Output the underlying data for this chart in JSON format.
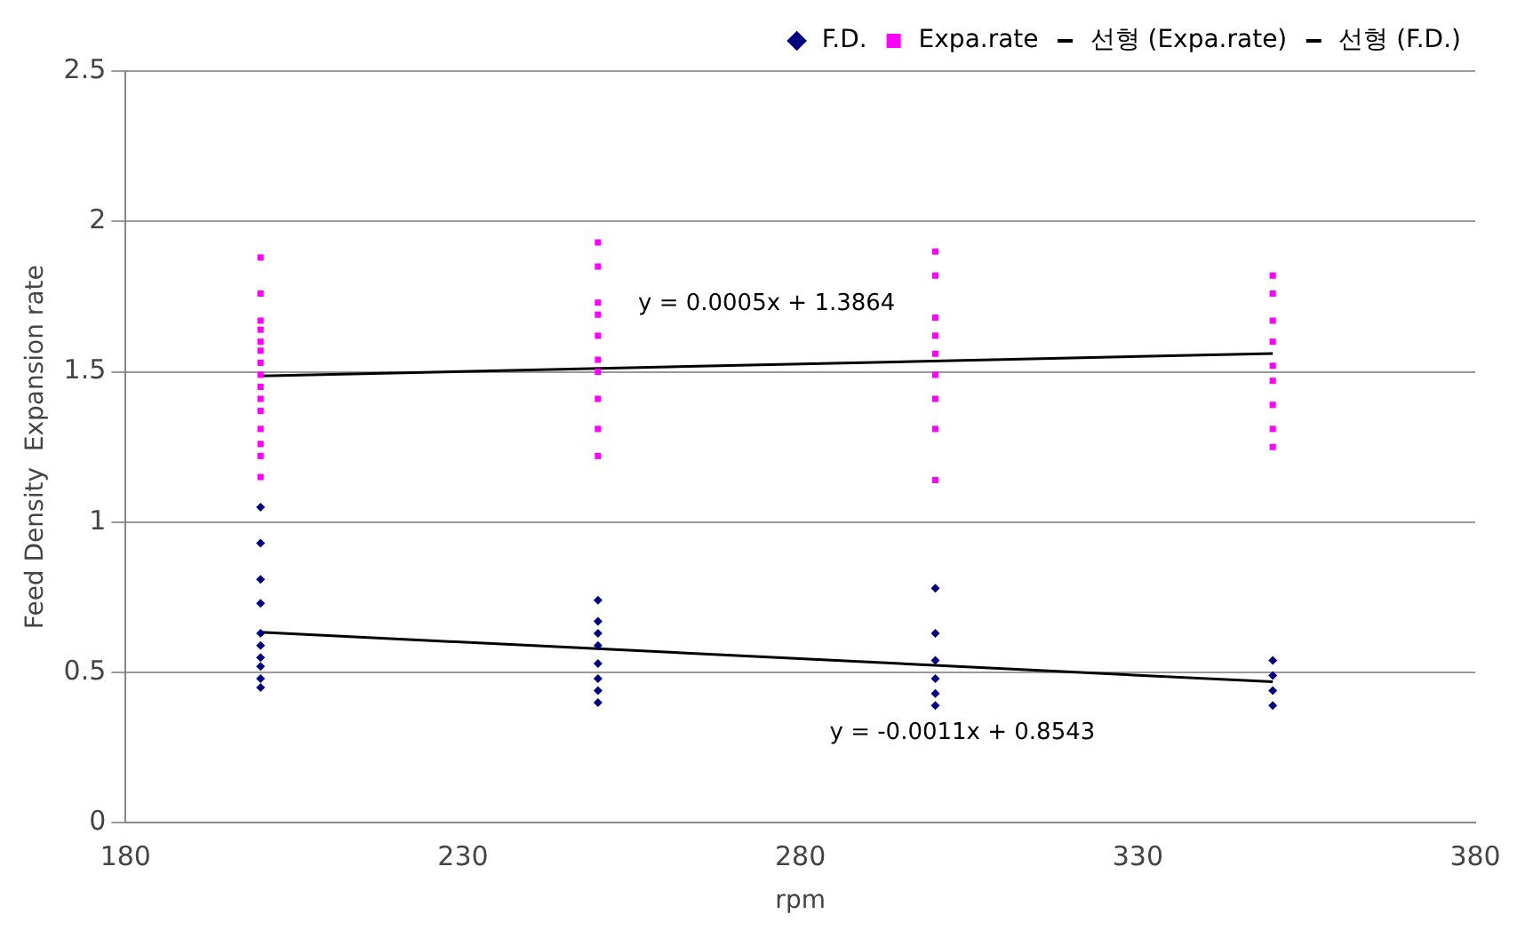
{
  "chart_data": {
    "type": "scatter",
    "xlabel": "rpm",
    "ylabel": "Feed Density  Expansion rate",
    "xlim": [
      180,
      380
    ],
    "xticks": [
      180,
      230,
      280,
      330,
      380
    ],
    "ylim": [
      0,
      2.5
    ],
    "yticks": [
      0,
      0.5,
      1,
      1.5,
      2,
      2.5
    ],
    "grid": "y",
    "legend": "top",
    "series": [
      {
        "name": "F.D.",
        "type": "scatter",
        "marker": "diamond",
        "color": "#000080",
        "x": [
          200,
          200,
          200,
          200,
          200,
          200,
          200,
          200,
          200,
          200,
          250,
          250,
          250,
          250,
          250,
          250,
          250,
          250,
          300,
          300,
          300,
          300,
          300,
          300,
          350,
          350,
          350,
          350
        ],
        "values": [
          1.05,
          0.93,
          0.81,
          0.73,
          0.63,
          0.59,
          0.55,
          0.52,
          0.48,
          0.45,
          0.74,
          0.67,
          0.63,
          0.59,
          0.53,
          0.48,
          0.44,
          0.4,
          0.78,
          0.63,
          0.54,
          0.48,
          0.43,
          0.39,
          0.54,
          0.49,
          0.44,
          0.39
        ]
      },
      {
        "name": "Expa.rate",
        "type": "scatter",
        "marker": "square",
        "color": "#ff00ff",
        "x": [
          200,
          200,
          200,
          200,
          200,
          200,
          200,
          200,
          200,
          200,
          200,
          200,
          200,
          200,
          200,
          250,
          250,
          250,
          250,
          250,
          250,
          250,
          250,
          250,
          250,
          300,
          300,
          300,
          300,
          300,
          300,
          300,
          300,
          300,
          350,
          350,
          350,
          350,
          350,
          350,
          350,
          350,
          350
        ],
        "values": [
          1.88,
          1.76,
          1.67,
          1.64,
          1.6,
          1.57,
          1.53,
          1.49,
          1.45,
          1.41,
          1.37,
          1.31,
          1.26,
          1.22,
          1.15,
          1.93,
          1.85,
          1.73,
          1.69,
          1.62,
          1.54,
          1.5,
          1.41,
          1.31,
          1.22,
          1.9,
          1.82,
          1.68,
          1.62,
          1.56,
          1.49,
          1.41,
          1.31,
          1.14,
          1.82,
          1.76,
          1.67,
          1.6,
          1.52,
          1.47,
          1.39,
          1.31,
          1.25
        ]
      },
      {
        "name": "선형 (Expa.rate)",
        "type": "line",
        "marker": "none",
        "color": "#000000",
        "x": [
          200,
          350
        ],
        "values": [
          1.486,
          1.561
        ]
      },
      {
        "name": "선형 (F.D.)",
        "type": "line",
        "marker": "none",
        "color": "#000000",
        "x": [
          200,
          350
        ],
        "values": [
          0.634,
          0.469
        ]
      }
    ],
    "annotations": [
      "y = 0.0005x + 1.3864",
      "y = -0.0011x + 0.8543"
    ]
  }
}
